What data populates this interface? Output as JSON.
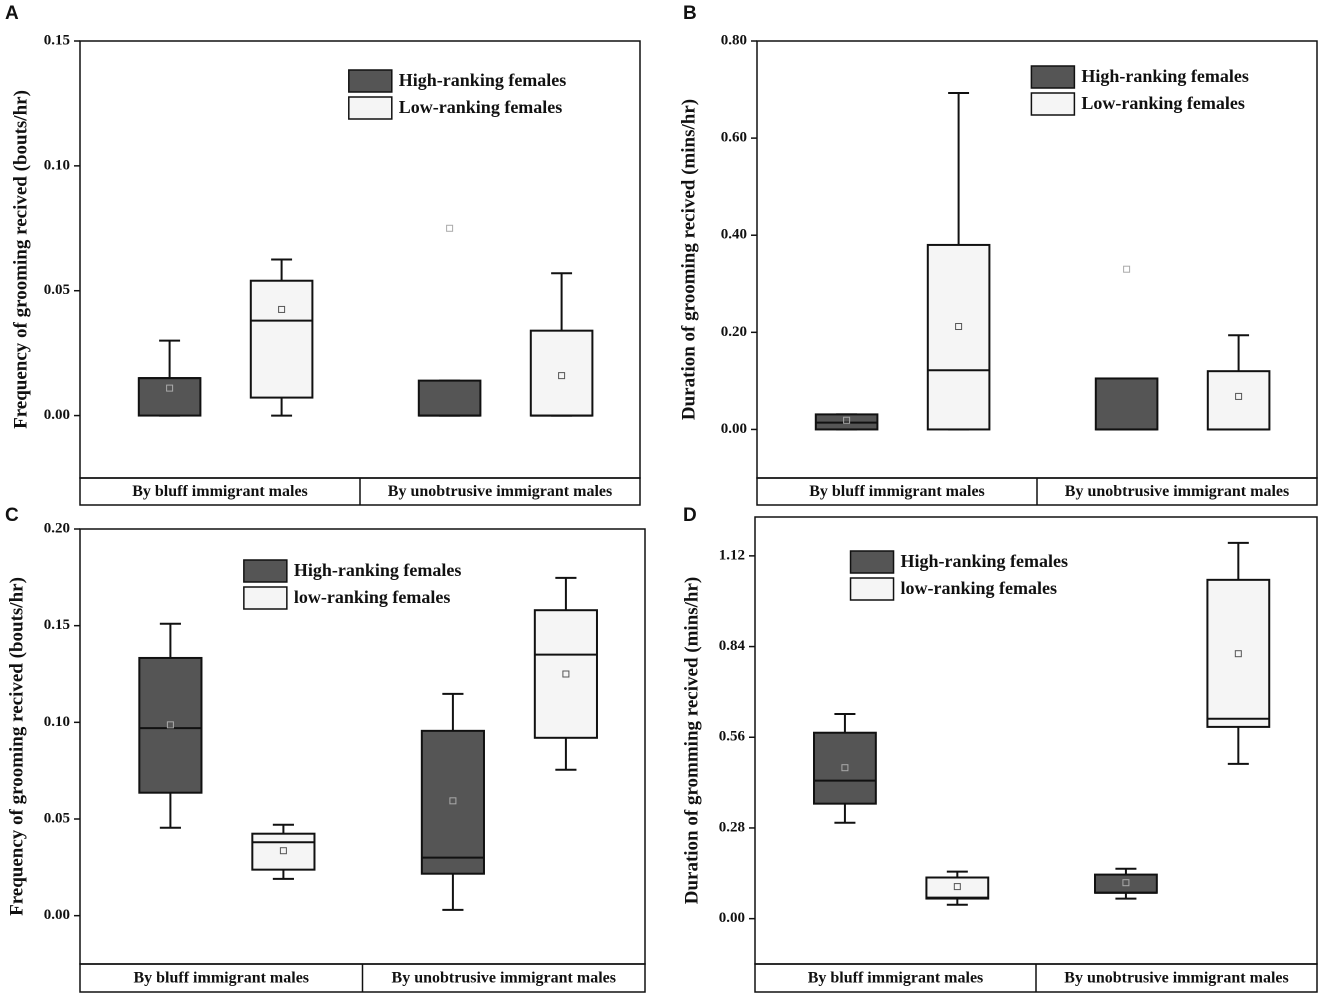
{
  "chart_data": [
    {
      "type": "box",
      "label": "A",
      "ylabel": "Frequency of grooming recived (bouts/hr)",
      "categories": [
        "By bluff immigrant males",
        "By unobtrusive immigrant males"
      ],
      "ylim": [
        -0.025,
        0.15
      ],
      "yticks": [
        {
          "value": 0,
          "label": "0.00"
        },
        {
          "value": 0.05,
          "label": "0.05"
        },
        {
          "value": 0.1,
          "label": "0.10"
        },
        {
          "value": 0.15,
          "label": "0.15"
        }
      ],
      "legend": "upper right",
      "series": [
        {
          "name": "High-ranking females",
          "color": "#555555",
          "min": [
            0,
            0
          ],
          "q1": [
            0,
            0
          ],
          "median": [
            0.015,
            0
          ],
          "q3": [
            0.015,
            0.014
          ],
          "max": [
            0.03,
            0.014
          ],
          "mean": [
            0.011,
            0.075
          ]
        },
        {
          "name": "Low-ranking females",
          "color": "#f5f5f5",
          "min": [
            0,
            0
          ],
          "q1": [
            0.0072,
            0
          ],
          "median": [
            0.038,
            0
          ],
          "q3": [
            0.054,
            0.034
          ],
          "max": [
            0.0625,
            0.057
          ],
          "mean": [
            0.0425,
            0.016
          ]
        }
      ]
    },
    {
      "type": "box",
      "label": "B",
      "ylabel": "Duration of grooming recived (mins/hr)",
      "categories": [
        "By bluff immigrant males",
        "By unobtrusive immigrant males"
      ],
      "ylim": [
        -0.1,
        0.8
      ],
      "yticks": [
        {
          "value": 0,
          "label": "0.00"
        },
        {
          "value": 0.2,
          "label": "0.20"
        },
        {
          "value": 0.4,
          "label": "0.40"
        },
        {
          "value": 0.6,
          "label": "0.60"
        },
        {
          "value": 0.8,
          "label": "0.80"
        }
      ],
      "legend": "upper right",
      "series": [
        {
          "name": "High-ranking females",
          "color": "#555555",
          "min": [
            0,
            0
          ],
          "q1": [
            0,
            0
          ],
          "median": [
            0.014,
            0
          ],
          "q3": [
            0.031,
            0.105
          ],
          "max": [
            0.031,
            0.105
          ],
          "mean": [
            0.019,
            0.33
          ]
        },
        {
          "name": "Low-ranking females",
          "color": "#f5f5f5",
          "min": [
            0,
            0
          ],
          "q1": [
            0,
            0
          ],
          "median": [
            0.122,
            0
          ],
          "q3": [
            0.38,
            0.12
          ],
          "max": [
            0.693,
            0.194
          ],
          "mean": [
            0.212,
            0.068
          ]
        }
      ]
    },
    {
      "type": "box",
      "label": "C",
      "ylabel": "Frequency of grooming recived (bouts/hr)",
      "categories": [
        "By bluff immigrant males",
        "By unobtrusive immigrant males"
      ],
      "ylim": [
        -0.025,
        0.2
      ],
      "yticks": [
        {
          "value": 0,
          "label": "0.00"
        },
        {
          "value": 0.05,
          "label": "0.05"
        },
        {
          "value": 0.1,
          "label": "0.10"
        },
        {
          "value": 0.15,
          "label": "0.15"
        },
        {
          "value": 0.2,
          "label": "0.20"
        }
      ],
      "legend": "upper left",
      "series": [
        {
          "name": "High-ranking females",
          "color": "#555555",
          "min": [
            0.0455,
            0.003
          ],
          "q1": [
            0.0636,
            0.0217
          ],
          "median": [
            0.097,
            0.03
          ],
          "q3": [
            0.1333,
            0.0956
          ],
          "max": [
            0.151,
            0.1147
          ],
          "mean": [
            0.0987,
            0.0594
          ]
        },
        {
          "name": "low-ranking females",
          "color": "#f5f5f5",
          "min": [
            0.019,
            0.0755
          ],
          "q1": [
            0.0238,
            0.092
          ],
          "median": [
            0.038,
            0.135
          ],
          "q3": [
            0.0424,
            0.158
          ],
          "max": [
            0.047,
            0.1747
          ],
          "mean": [
            0.0336,
            0.125
          ]
        }
      ]
    },
    {
      "type": "box",
      "label": "D",
      "ylabel": "Duration of gromming recived (mins/hr)",
      "categories": [
        "By bluff immigrant males",
        "By unobtrusive immigrant males"
      ],
      "ylim": [
        -0.14,
        1.24
      ],
      "yticks": [
        {
          "value": 0,
          "label": "0.00"
        },
        0.28,
        0.56,
        0.84,
        1.12
      ],
      "legend": "upper left",
      "series": [
        {
          "name": "High-ranking females",
          "color": "#555555",
          "min": [
            0.296,
            0.062
          ],
          "q1": [
            0.355,
            0.08
          ],
          "median": [
            0.426,
            0.08
          ],
          "q3": [
            0.574,
            0.136
          ],
          "max": [
            0.632,
            0.154
          ],
          "mean": [
            0.466,
            0.111
          ]
        },
        {
          "name": "low-ranking females",
          "color": "#f5f5f5",
          "min": [
            0.043,
            0.478
          ],
          "q1": [
            0.062,
            0.592
          ],
          "median": [
            0.065,
            0.617
          ],
          "q3": [
            0.127,
            1.046
          ],
          "max": [
            0.145,
            1.16
          ],
          "mean": [
            0.099,
            0.818
          ]
        }
      ]
    }
  ]
}
